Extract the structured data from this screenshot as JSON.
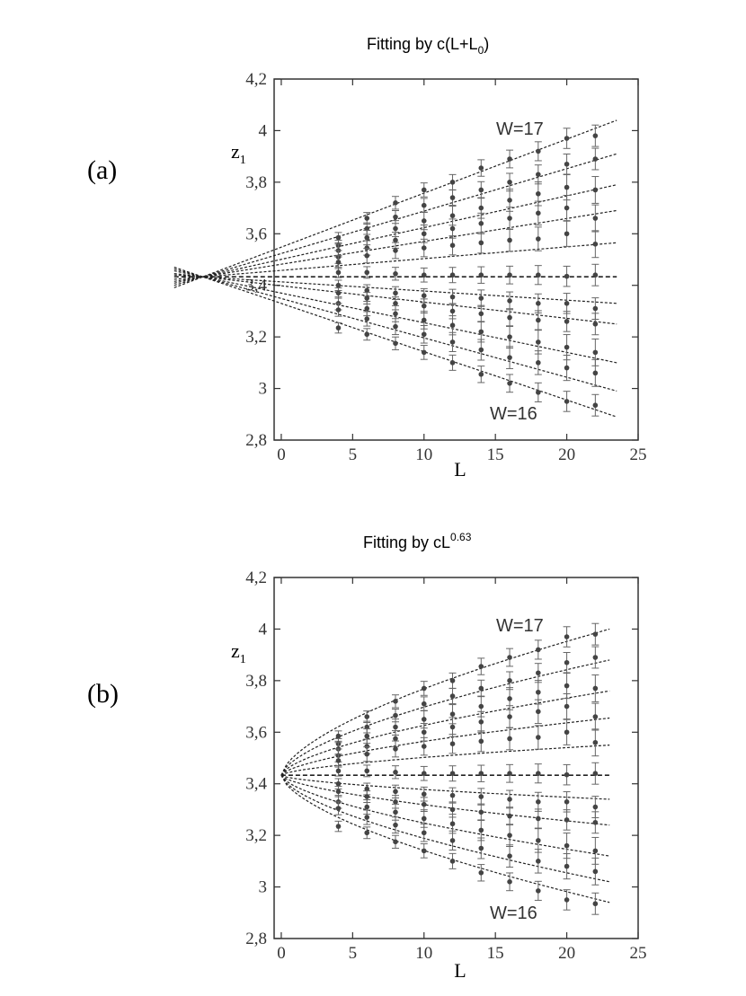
{
  "chart_data": [
    {
      "type": "scatter",
      "panel_label": "(a)",
      "title_main": "Fitting  by  c(L+L",
      "title_sub": "0",
      "title_tail": ")",
      "xlabel": "L",
      "ylabel_main": "z",
      "ylabel_sub": "1",
      "xlim": [
        -0.5,
        25
      ],
      "ylim": [
        2.8,
        4.2
      ],
      "xticks": [
        0,
        5,
        10,
        15,
        20,
        25
      ],
      "yticks": [
        2.8,
        3.0,
        3.2,
        3.4,
        3.6,
        3.8,
        4.0,
        4.2
      ],
      "xtick_labels": [
        "0",
        "5",
        "10",
        "15",
        "20",
        "25"
      ],
      "ytick_labels": [
        "2,8",
        "3",
        "3,2",
        "3,4",
        "3,6",
        "3,8",
        "4",
        "4,2"
      ],
      "grid": false,
      "annotations": [
        {
          "text": "W=17",
          "x": 15.5,
          "y": 4.03
        },
        {
          "text": "W=16",
          "x": 15,
          "y": 2.9
        }
      ],
      "fit_form": "linear",
      "fit_origin": {
        "x": -5.5,
        "y": 3.433
      },
      "x": [
        4,
        6,
        8,
        10,
        12,
        14,
        16,
        18,
        20,
        22
      ],
      "series": [
        {
          "values": [
            3.585,
            3.66,
            3.72,
            3.77,
            3.8,
            3.855,
            3.89,
            3.92,
            3.97,
            3.98
          ],
          "fit_end": 4.04,
          "error": 0.02
        },
        {
          "values": [
            3.555,
            3.62,
            3.665,
            3.71,
            3.74,
            3.77,
            3.8,
            3.83,
            3.87,
            3.89
          ],
          "fit_end": 3.91,
          "error": 0.02
        },
        {
          "values": [
            3.535,
            3.585,
            3.62,
            3.65,
            3.67,
            3.7,
            3.73,
            3.755,
            3.78,
            3.77
          ],
          "fit_end": 3.79,
          "error": 0.025
        },
        {
          "values": [
            3.51,
            3.545,
            3.575,
            3.6,
            3.62,
            3.64,
            3.66,
            3.68,
            3.7,
            3.66
          ],
          "fit_end": 3.69,
          "error": 0.025
        },
        {
          "values": [
            3.49,
            3.515,
            3.535,
            3.545,
            3.555,
            3.565,
            3.575,
            3.58,
            3.6,
            3.56
          ],
          "fit_end": 3.565,
          "error": 0.025
        },
        {
          "values": [
            3.45,
            3.45,
            3.445,
            3.44,
            3.44,
            3.44,
            3.44,
            3.44,
            3.435,
            3.44
          ],
          "fit_end": 3.433,
          "error": 0.02
        },
        {
          "values": [
            3.4,
            3.38,
            3.37,
            3.36,
            3.355,
            3.35,
            3.34,
            3.33,
            3.33,
            3.31
          ],
          "fit_end": 3.33,
          "error": 0.02
        },
        {
          "values": [
            3.37,
            3.35,
            3.33,
            3.32,
            3.3,
            3.29,
            3.275,
            3.265,
            3.26,
            3.25
          ],
          "fit_end": 3.25,
          "error": 0.02
        },
        {
          "values": [
            3.33,
            3.31,
            3.29,
            3.265,
            3.245,
            3.22,
            3.2,
            3.18,
            3.16,
            3.14
          ],
          "fit_end": 3.1,
          "error": 0.025
        },
        {
          "values": [
            3.305,
            3.27,
            3.24,
            3.21,
            3.18,
            3.15,
            3.12,
            3.1,
            3.08,
            3.06
          ],
          "fit_end": 2.99,
          "error": 0.025
        },
        {
          "values": [
            3.235,
            3.21,
            3.175,
            3.14,
            3.1,
            3.055,
            3.02,
            2.985,
            2.95,
            2.935
          ],
          "fit_end": 2.89,
          "error": 0.02
        }
      ]
    },
    {
      "type": "scatter",
      "panel_label": "(b)",
      "title_main": "Fitting  by   cL",
      "title_sup": "0.63",
      "xlabel": "L",
      "ylabel_main": "z",
      "ylabel_sub": "1",
      "xlim": [
        -0.5,
        25
      ],
      "ylim": [
        2.8,
        4.2
      ],
      "xticks": [
        0,
        5,
        10,
        15,
        20,
        25
      ],
      "yticks": [
        2.8,
        3.0,
        3.2,
        3.4,
        3.6,
        3.8,
        4.0,
        4.2
      ],
      "xtick_labels": [
        "0",
        "5",
        "10",
        "15",
        "20",
        "25"
      ],
      "ytick_labels": [
        "2,8",
        "3",
        "3,2",
        "3,4",
        "3,6",
        "3,8",
        "4",
        "4,2"
      ],
      "grid": false,
      "annotations": [
        {
          "text": "W=17",
          "x": 15.5,
          "y": 4.03
        },
        {
          "text": "W=16",
          "x": 15,
          "y": 2.9
        }
      ],
      "fit_form": "power",
      "fit_exponent": 0.63,
      "fit_origin": {
        "x": 0,
        "y": 3.433
      },
      "x": [
        4,
        6,
        8,
        10,
        12,
        14,
        16,
        18,
        20,
        22
      ],
      "series": [
        {
          "values": [
            3.585,
            3.66,
            3.72,
            3.77,
            3.8,
            3.855,
            3.89,
            3.92,
            3.97,
            3.98
          ],
          "fit_end": 4.0,
          "error": 0.02
        },
        {
          "values": [
            3.555,
            3.62,
            3.665,
            3.71,
            3.74,
            3.77,
            3.8,
            3.83,
            3.87,
            3.89
          ],
          "fit_end": 3.88,
          "error": 0.02
        },
        {
          "values": [
            3.535,
            3.585,
            3.62,
            3.65,
            3.67,
            3.7,
            3.73,
            3.755,
            3.78,
            3.77
          ],
          "fit_end": 3.76,
          "error": 0.025
        },
        {
          "values": [
            3.51,
            3.545,
            3.575,
            3.6,
            3.62,
            3.64,
            3.66,
            3.68,
            3.7,
            3.66
          ],
          "fit_end": 3.655,
          "error": 0.025
        },
        {
          "values": [
            3.49,
            3.515,
            3.535,
            3.545,
            3.555,
            3.565,
            3.575,
            3.58,
            3.6,
            3.56
          ],
          "fit_end": 3.55,
          "error": 0.025
        },
        {
          "values": [
            3.45,
            3.45,
            3.445,
            3.44,
            3.44,
            3.44,
            3.44,
            3.44,
            3.435,
            3.44
          ],
          "fit_end": 3.433,
          "error": 0.02
        },
        {
          "values": [
            3.4,
            3.38,
            3.37,
            3.36,
            3.355,
            3.35,
            3.34,
            3.33,
            3.33,
            3.31
          ],
          "fit_end": 3.34,
          "error": 0.02
        },
        {
          "values": [
            3.37,
            3.35,
            3.33,
            3.32,
            3.3,
            3.29,
            3.275,
            3.265,
            3.26,
            3.25
          ],
          "fit_end": 3.24,
          "error": 0.02
        },
        {
          "values": [
            3.33,
            3.31,
            3.29,
            3.265,
            3.245,
            3.22,
            3.2,
            3.18,
            3.16,
            3.14
          ],
          "fit_end": 3.12,
          "error": 0.025
        },
        {
          "values": [
            3.305,
            3.27,
            3.24,
            3.21,
            3.18,
            3.15,
            3.12,
            3.1,
            3.08,
            3.06
          ],
          "fit_end": 3.02,
          "error": 0.025
        },
        {
          "values": [
            3.235,
            3.21,
            3.175,
            3.14,
            3.1,
            3.055,
            3.02,
            2.985,
            2.95,
            2.935
          ],
          "fit_end": 2.94,
          "error": 0.02
        }
      ]
    }
  ]
}
